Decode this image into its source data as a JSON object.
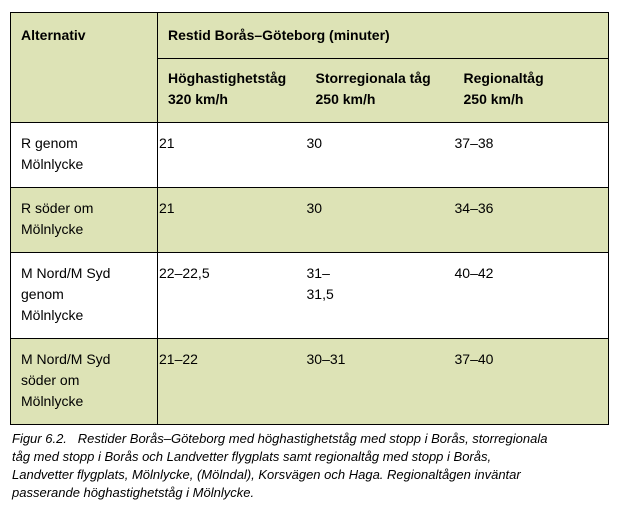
{
  "table": {
    "header": {
      "alternative_label": "Alternativ",
      "group_title": "Restid Borås–Göteborg (minuter)",
      "columns": [
        "Höghastighetståg\n320 km/h",
        "Storregionala tåg\n250 km/h",
        "Regionaltåg\n250 km/h"
      ]
    },
    "rows": [
      {
        "alternative": "R genom\nMölnlycke",
        "values": [
          "21",
          "30",
          "37–38"
        ]
      },
      {
        "alternative": "R söder om\nMölnlycke",
        "values": [
          "21",
          "30",
          "34–36"
        ]
      },
      {
        "alternative": "M Nord/M Syd\ngenom\nMölnlycke",
        "values": [
          "22–22,5",
          "31–31,5",
          "40–42"
        ]
      },
      {
        "alternative": "M Nord/M Syd\nsöder om\nMölnlycke",
        "values": [
          "21–22",
          "30–31",
          "37–40"
        ]
      }
    ]
  },
  "caption": {
    "lines": [
      "Figur 6.2.   Restider Borås–Göteborg med höghastighetståg med stopp i Borås, storregionala",
      "tåg med stopp i Borås och Landvetter flygplats samt regionaltåg med stopp i Borås,",
      "Landvetter flygplats, Mölnlycke, (Mölndal), Korsvägen och Haga. Regionaltågen inväntar",
      "passerande höghastighetståg i Mölnlycke."
    ]
  },
  "colors": {
    "row_green": "#dde3b6",
    "row_white": "#ffffff",
    "border": "#000000"
  }
}
